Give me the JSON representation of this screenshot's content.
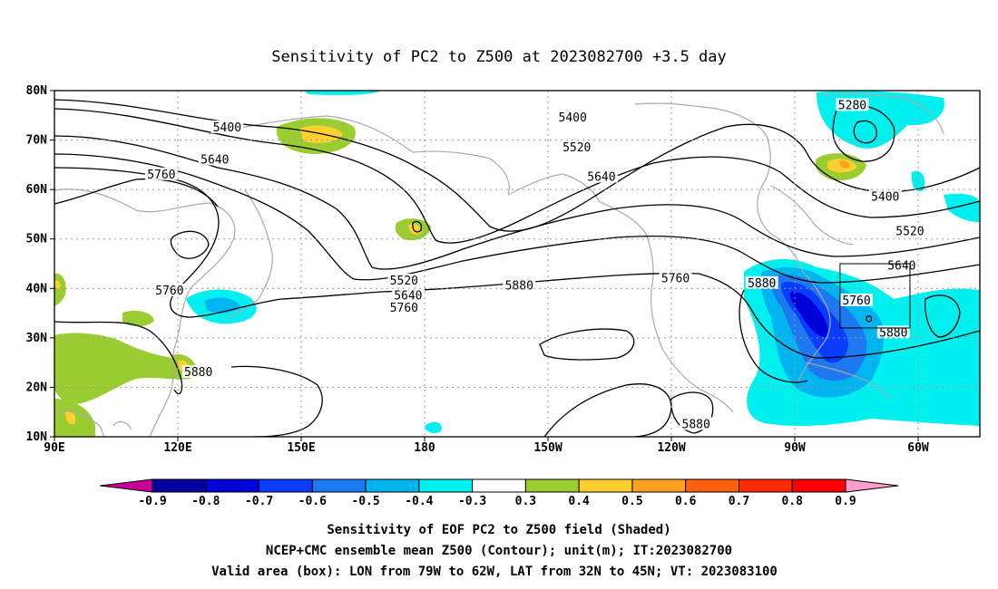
{
  "title": "Sensitivity of PC2 to Z500 at 2023082700 +3.5 day",
  "map": {
    "lat_ticks": [
      "80N",
      "70N",
      "60N",
      "50N",
      "40N",
      "30N",
      "20N",
      "10N"
    ],
    "lon_ticks": [
      "90E",
      "120E",
      "150E",
      "180",
      "150W",
      "120W",
      "90W",
      "60W"
    ],
    "lon_range_deg_east": [
      90,
      315
    ],
    "lat_range": [
      10,
      80
    ],
    "gridlines": "dotted",
    "coastline_color": "#aaaaaa",
    "valid_box": {
      "lon_from": "79W",
      "lon_to": "62W",
      "lat_from": "32N",
      "lat_to": "45N"
    }
  },
  "contour_labels": [
    {
      "text": "5400",
      "lon": 132,
      "lat": 72.5
    },
    {
      "text": "5640",
      "lon": 129,
      "lat": 66
    },
    {
      "text": "5760",
      "lon": 116,
      "lat": 63
    },
    {
      "text": "5760",
      "lon": 118,
      "lat": 39.5
    },
    {
      "text": "5880",
      "lon": 125,
      "lat": 23
    },
    {
      "text": "5520",
      "lon": 175,
      "lat": 41.5
    },
    {
      "text": "5640",
      "lon": 176,
      "lat": 38.5
    },
    {
      "text": "5760",
      "lon": 175,
      "lat": 36
    },
    {
      "text": "5880",
      "lon": 203,
      "lat": 40.5
    },
    {
      "text": "5400",
      "lon": 216,
      "lat": 74.5
    },
    {
      "text": "5520",
      "lon": 217,
      "lat": 68.5
    },
    {
      "text": "5640",
      "lon": 223,
      "lat": 62.5
    },
    {
      "text": "5760",
      "lon": 241,
      "lat": 42
    },
    {
      "text": "5880",
      "lon": 262,
      "lat": 41
    },
    {
      "text": "5880",
      "lon": 246,
      "lat": 12.5
    },
    {
      "text": "5280",
      "lon": 284,
      "lat": 77
    },
    {
      "text": "5400",
      "lon": 292,
      "lat": 58.5
    },
    {
      "text": "5520",
      "lon": 298,
      "lat": 51.5
    },
    {
      "text": "5640",
      "lon": 296,
      "lat": 44.5
    },
    {
      "text": "5760",
      "lon": 285,
      "lat": 37.5
    },
    {
      "text": "5880",
      "lon": 294,
      "lat": 31
    }
  ],
  "colorbar": {
    "labels": [
      "-0.9",
      "-0.8",
      "-0.7",
      "-0.6",
      "-0.5",
      "-0.4",
      "-0.3",
      "0.3",
      "0.4",
      "0.5",
      "0.6",
      "0.7",
      "0.8",
      "0.9"
    ],
    "colors": [
      "#0000a0",
      "#0000d8",
      "#0a3cff",
      "#1e78f0",
      "#00b4f0",
      "#00f0f0",
      "#ffffff",
      "#9acd32",
      "#ffd030",
      "#ffa020",
      "#ff6010",
      "#ff2800",
      "#ff0000"
    ],
    "end_left_color": "#c80096",
    "end_right_color": "#ff9ec8"
  },
  "captions": [
    "Sensitivity of EOF PC2 to Z500 field (Shaded)",
    "NCEP+CMC ensemble mean Z500 (Contour); unit(m); IT:2023082700",
    "Valid area (box): LON from 79W to 62W, LAT from 32N to 45N; VT: 2023083100"
  ]
}
